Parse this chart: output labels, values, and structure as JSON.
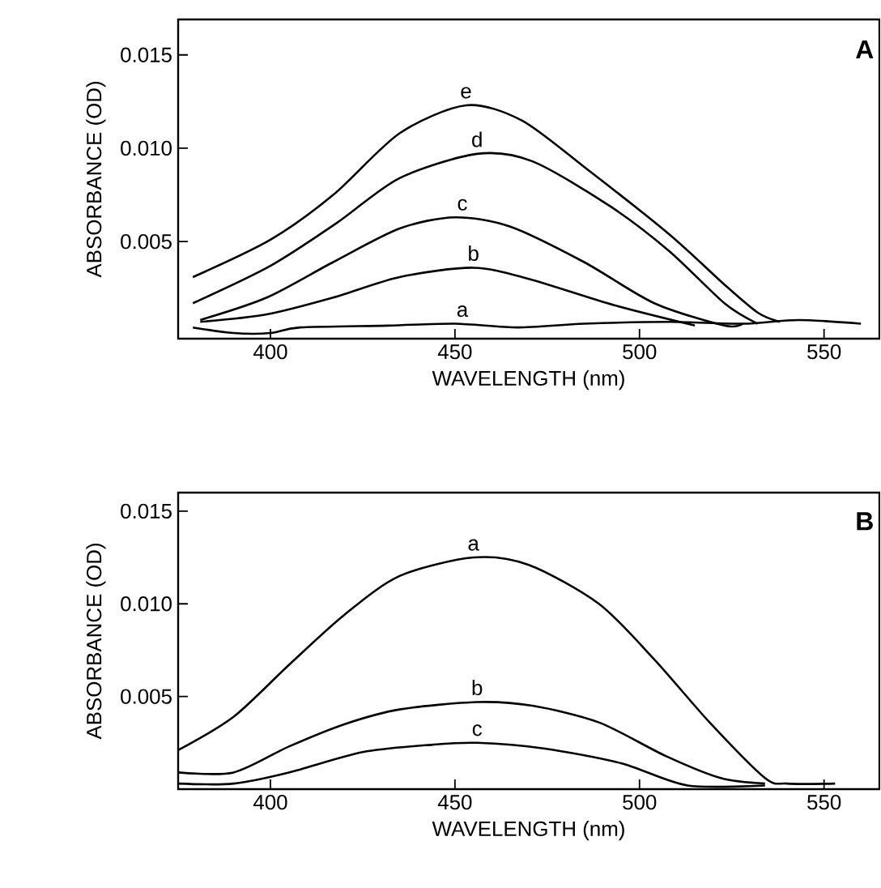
{
  "chart_data": [
    {
      "type": "line",
      "xlabel": "WAVELENGTH (nm)",
      "ylabel": "ABSORBANCE (OD)",
      "xlim": [
        375,
        565
      ],
      "ylim": [
        -0.0002,
        0.0169
      ],
      "xticks": [
        400,
        450,
        500,
        550
      ],
      "yticks": [
        {
          "value": 0.005,
          "label": "0.005"
        },
        {
          "value": 0.01,
          "label": "0.010"
        },
        {
          "value": 0.015,
          "label": "0.015"
        }
      ],
      "marker": "none",
      "line_style": "solid",
      "series": [
        {
          "color": "#000000",
          "x": [
            379,
            390,
            400,
            408,
            432,
            450,
            467,
            485,
            508,
            528,
            543,
            560
          ],
          "values": [
            0.0004,
            0.0001,
            0.0001,
            0.0004,
            0.0005,
            0.0006,
            0.0004,
            0.0006,
            0.0007,
            0.0006,
            0.0008,
            0.0006
          ]
        },
        {
          "color": "#000000",
          "x": [
            381,
            399,
            417,
            435,
            455,
            470,
            493,
            515
          ],
          "values": [
            0.0007,
            0.0011,
            0.002,
            0.0031,
            0.0036,
            0.003,
            0.0016,
            0.0005
          ]
        },
        {
          "color": "#000000",
          "x": [
            381,
            399,
            417,
            435,
            450,
            465,
            485,
            504,
            523,
            528
          ],
          "values": [
            0.0008,
            0.002,
            0.0039,
            0.0057,
            0.0063,
            0.0058,
            0.0039,
            0.0017,
            0.0005,
            0.0006
          ]
        },
        {
          "color": "#000000",
          "x": [
            379,
            400,
            418,
            435,
            456,
            471,
            492,
            508,
            523,
            532
          ],
          "values": [
            0.0017,
            0.0037,
            0.006,
            0.0084,
            0.0097,
            0.0093,
            0.0069,
            0.0045,
            0.0017,
            0.0006
          ]
        },
        {
          "color": "#000000",
          "x": [
            379,
            400,
            417,
            435,
            453,
            468,
            485,
            508,
            523,
            532,
            538
          ],
          "values": [
            0.0031,
            0.0051,
            0.0075,
            0.0108,
            0.0123,
            0.0115,
            0.009,
            0.0054,
            0.0027,
            0.0012,
            0.0007
          ]
        }
      ],
      "annotations": [
        "A",
        {
          "text": "a",
          "x": 452,
          "y": 0.0006
        },
        {
          "text": "b",
          "x": 455,
          "y": 0.0036
        },
        {
          "text": "c",
          "x": 452,
          "y": 0.0063
        },
        {
          "text": "d",
          "x": 456,
          "y": 0.0097
        },
        {
          "text": "e",
          "x": 453,
          "y": 0.0123
        }
      ]
    },
    {
      "type": "line",
      "xlabel": "WAVELENGTH (nm)",
      "ylabel": "ABSORBANCE (OD)",
      "xlim": [
        375,
        565
      ],
      "ylim": [
        0,
        0.016
      ],
      "xticks": [
        400,
        450,
        500,
        550
      ],
      "yticks": [
        {
          "value": 0.005,
          "label": "0.005"
        },
        {
          "value": 0.01,
          "label": "0.010"
        },
        {
          "value": 0.015,
          "label": "0.015"
        }
      ],
      "marker": "none",
      "line_style": "solid",
      "series": [
        {
          "color": "#000000",
          "x": [
            375,
            390,
            405,
            420,
            435,
            455,
            470,
            489,
            504,
            519,
            534,
            540,
            553
          ],
          "values": [
            0.0021,
            0.0039,
            0.0067,
            0.0094,
            0.0115,
            0.0125,
            0.0121,
            0.01,
            0.007,
            0.0036,
            0.0006,
            0.0003,
            0.0003
          ]
        },
        {
          "color": "#000000",
          "x": [
            375,
            390,
            405,
            420,
            435,
            456,
            471,
            489,
            507,
            522,
            534
          ],
          "values": [
            0.0009,
            0.0009,
            0.0023,
            0.0035,
            0.0043,
            0.0047,
            0.0045,
            0.0036,
            0.0018,
            0.0006,
            0.0003
          ]
        },
        {
          "color": "#000000",
          "x": [
            375,
            390,
            405,
            425,
            444,
            456,
            474,
            495,
            513,
            534
          ],
          "values": [
            0.0003,
            0.0003,
            0.0009,
            0.002,
            0.0024,
            0.0025,
            0.0022,
            0.0014,
            0.0002,
            0.0002
          ]
        }
      ],
      "annotations": [
        "B",
        {
          "text": "a",
          "x": 455,
          "y": 0.0125
        },
        {
          "text": "b",
          "x": 456,
          "y": 0.0047
        },
        {
          "text": "c",
          "x": 456,
          "y": 0.0025
        }
      ]
    }
  ]
}
